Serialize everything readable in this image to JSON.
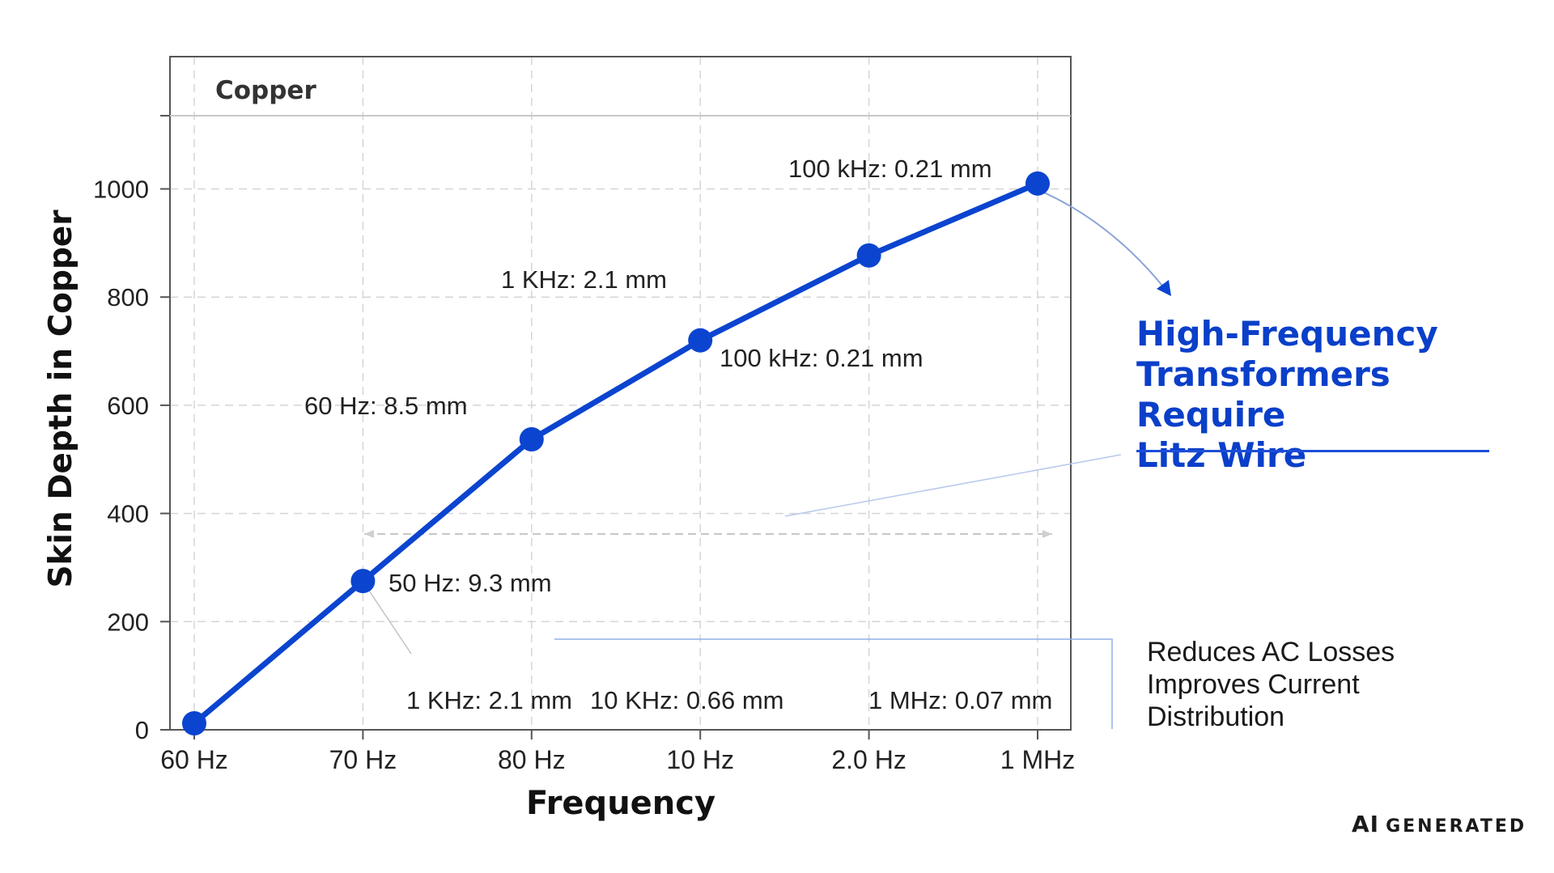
{
  "chart_data": {
    "type": "line",
    "title": "Copper",
    "xlabel": "Frequency",
    "ylabel": "Skin Depth in Copper",
    "categories": [
      "60 Hz",
      "70 Hz",
      "80 Hz",
      "10 Hz",
      "2.0 Hz",
      "1 MHz"
    ],
    "series": [
      {
        "values": [
          12,
          275,
          537,
          720,
          877,
          1010
        ]
      }
    ],
    "yticks": [
      0,
      200,
      400,
      600,
      800,
      1000
    ],
    "ylim": [
      0,
      1135
    ],
    "grid": true,
    "point_labels": [
      "100 kHz: 0.21 mm",
      "1 KHz: 2.1 mm",
      "100 kHz:  0.21 mm",
      "60 Hz:  8.5 mm",
      "50 Hz:  9.3 mm"
    ],
    "bottom_labels": [
      "1 KHz: 2.1 mm",
      "10 KHz: 0.66 mm",
      "1 MHz: 0.07 mm"
    ]
  },
  "callout": {
    "title_lines": [
      "High-Frequency",
      "Transformers Require",
      "Litz Wire"
    ],
    "notes_lines": [
      "Reduces AC Losses",
      "Improves Current",
      "Distribution"
    ]
  },
  "badge": {
    "ai": "AI",
    "text": "GENERATED"
  },
  "colors": {
    "line": "#0b44cf",
    "accent": "#0a3fc9",
    "grid": "#d5d5d5"
  }
}
